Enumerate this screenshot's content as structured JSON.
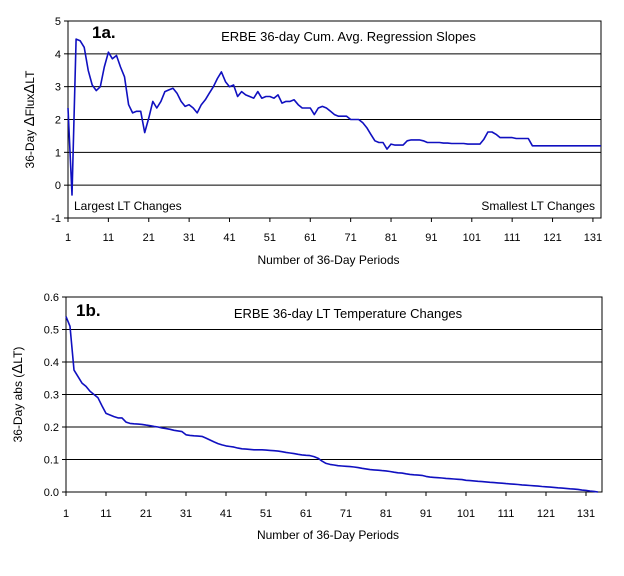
{
  "chart_data": [
    {
      "type": "line",
      "panel_label": "1a.",
      "title": "ERBE 36-day Cum. Avg. Regression Slopes",
      "xlabel": "Number of 36-Day Periods",
      "ylabel_parts": [
        "36-Day ",
        "Δ",
        "Flux",
        "Δ",
        "LT"
      ],
      "annotations": {
        "left": "Largest LT Changes",
        "right": "Smallest LT Changes"
      },
      "xlim": [
        1,
        133
      ],
      "ylim": [
        -1,
        5
      ],
      "x_ticks": [
        1,
        11,
        21,
        31,
        41,
        51,
        61,
        71,
        81,
        91,
        101,
        111,
        121,
        131
      ],
      "y_ticks": [
        -1,
        0,
        1,
        2,
        3,
        4,
        5
      ],
      "grid": true,
      "x": [
        1,
        2,
        3,
        4,
        5,
        6,
        7,
        8,
        9,
        10,
        11,
        12,
        13,
        14,
        15,
        16,
        17,
        18,
        19,
        20,
        21,
        22,
        23,
        24,
        25,
        26,
        27,
        28,
        29,
        30,
        31,
        32,
        33,
        34,
        35,
        36,
        37,
        38,
        39,
        40,
        41,
        42,
        43,
        44,
        45,
        46,
        47,
        48,
        49,
        50,
        51,
        52,
        53,
        54,
        55,
        56,
        57,
        58,
        59,
        60,
        61,
        62,
        63,
        64,
        65,
        66,
        67,
        68,
        69,
        70,
        71,
        72,
        73,
        74,
        75,
        76,
        77,
        78,
        79,
        80,
        81,
        82,
        83,
        84,
        85,
        86,
        87,
        88,
        89,
        90,
        91,
        92,
        93,
        94,
        95,
        96,
        97,
        98,
        99,
        100,
        101,
        102,
        103,
        104,
        105,
        106,
        107,
        108,
        109,
        110,
        111,
        112,
        113,
        114,
        115,
        116,
        117,
        118,
        119,
        120,
        121,
        122,
        123,
        124,
        125,
        126,
        127,
        128,
        129,
        130,
        131,
        132,
        133
      ],
      "values": [
        2.35,
        -0.3,
        4.45,
        4.4,
        4.2,
        3.5,
        3.05,
        2.88,
        3.0,
        3.6,
        4.05,
        3.85,
        3.95,
        3.6,
        3.3,
        2.45,
        2.2,
        2.25,
        2.25,
        1.6,
        2.05,
        2.55,
        2.35,
        2.55,
        2.85,
        2.9,
        2.95,
        2.8,
        2.55,
        2.4,
        2.45,
        2.35,
        2.2,
        2.45,
        2.6,
        2.8,
        3.0,
        3.25,
        3.45,
        3.15,
        3.0,
        3.05,
        2.7,
        2.85,
        2.75,
        2.7,
        2.65,
        2.85,
        2.65,
        2.7,
        2.7,
        2.65,
        2.75,
        2.5,
        2.55,
        2.55,
        2.6,
        2.45,
        2.35,
        2.35,
        2.35,
        2.15,
        2.35,
        2.4,
        2.35,
        2.25,
        2.15,
        2.1,
        2.1,
        2.1,
        2.0,
        2.0,
        2.0,
        1.9,
        1.75,
        1.55,
        1.35,
        1.3,
        1.3,
        1.1,
        1.25,
        1.22,
        1.22,
        1.22,
        1.35,
        1.38,
        1.38,
        1.38,
        1.35,
        1.3,
        1.3,
        1.3,
        1.3,
        1.28,
        1.28,
        1.27,
        1.27,
        1.27,
        1.27,
        1.25,
        1.25,
        1.25,
        1.25,
        1.4,
        1.62,
        1.62,
        1.55,
        1.45,
        1.45,
        1.45,
        1.45,
        1.42,
        1.42,
        1.42,
        1.42,
        1.2,
        1.2,
        1.2,
        1.2,
        1.2,
        1.2,
        1.2,
        1.2,
        1.2,
        1.2,
        1.2,
        1.2,
        1.2,
        1.2,
        1.2,
        1.2,
        1.2,
        1.2
      ]
    },
    {
      "type": "line",
      "panel_label": "1b.",
      "title": "ERBE 36-day LT Temperature Changes",
      "xlabel": "Number of 36-Day Periods",
      "ylabel_parts": [
        "36-Day abs (",
        "Δ",
        "LT)"
      ],
      "xlim": [
        1,
        135
      ],
      "ylim": [
        0,
        0.6
      ],
      "x_ticks": [
        1,
        11,
        21,
        31,
        41,
        51,
        61,
        71,
        81,
        91,
        101,
        111,
        121,
        131
      ],
      "y_ticks": [
        "0.0",
        "0.1",
        "0.2",
        "0.3",
        "0.4",
        "0.5",
        "0.6"
      ],
      "grid": true,
      "x": [
        1,
        2,
        3,
        4,
        5,
        6,
        7,
        8,
        9,
        10,
        11,
        12,
        13,
        14,
        15,
        16,
        17,
        18,
        19,
        20,
        21,
        22,
        23,
        24,
        25,
        26,
        27,
        28,
        29,
        30,
        31,
        32,
        33,
        34,
        35,
        36,
        37,
        38,
        39,
        40,
        41,
        42,
        43,
        44,
        45,
        46,
        47,
        48,
        49,
        50,
        51,
        52,
        53,
        54,
        55,
        56,
        57,
        58,
        59,
        60,
        61,
        62,
        63,
        64,
        65,
        66,
        67,
        68,
        69,
        70,
        71,
        72,
        73,
        74,
        75,
        76,
        77,
        78,
        79,
        80,
        81,
        82,
        83,
        84,
        85,
        86,
        87,
        88,
        89,
        90,
        91,
        92,
        93,
        94,
        95,
        96,
        97,
        98,
        99,
        100,
        101,
        102,
        103,
        104,
        105,
        106,
        107,
        108,
        109,
        110,
        111,
        112,
        113,
        114,
        115,
        116,
        117,
        118,
        119,
        120,
        121,
        122,
        123,
        124,
        125,
        126,
        127,
        128,
        129,
        130,
        131,
        132,
        133,
        134
      ],
      "values": [
        0.54,
        0.51,
        0.375,
        0.355,
        0.335,
        0.325,
        0.31,
        0.3,
        0.29,
        0.265,
        0.242,
        0.237,
        0.232,
        0.228,
        0.228,
        0.215,
        0.211,
        0.21,
        0.209,
        0.208,
        0.206,
        0.204,
        0.202,
        0.2,
        0.197,
        0.195,
        0.193,
        0.19,
        0.188,
        0.186,
        0.176,
        0.174,
        0.173,
        0.172,
        0.171,
        0.166,
        0.16,
        0.154,
        0.149,
        0.145,
        0.142,
        0.14,
        0.138,
        0.135,
        0.133,
        0.132,
        0.131,
        0.13,
        0.13,
        0.13,
        0.129,
        0.128,
        0.127,
        0.126,
        0.124,
        0.122,
        0.12,
        0.118,
        0.116,
        0.114,
        0.113,
        0.112,
        0.109,
        0.104,
        0.095,
        0.088,
        0.085,
        0.083,
        0.081,
        0.08,
        0.079,
        0.078,
        0.077,
        0.075,
        0.073,
        0.071,
        0.069,
        0.068,
        0.067,
        0.066,
        0.065,
        0.063,
        0.061,
        0.059,
        0.058,
        0.056,
        0.054,
        0.053,
        0.052,
        0.051,
        0.048,
        0.046,
        0.045,
        0.044,
        0.043,
        0.042,
        0.041,
        0.04,
        0.039,
        0.038,
        0.036,
        0.035,
        0.034,
        0.033,
        0.032,
        0.031,
        0.03,
        0.029,
        0.028,
        0.027,
        0.026,
        0.025,
        0.024,
        0.023,
        0.022,
        0.021,
        0.02,
        0.019,
        0.018,
        0.017,
        0.016,
        0.015,
        0.014,
        0.013,
        0.012,
        0.011,
        0.01,
        0.009,
        0.008,
        0.006,
        0.005,
        0.003,
        0.002,
        0.0
      ]
    }
  ],
  "colors": {
    "series": "#1010c0",
    "grid": "#000000",
    "background": "#ffffff"
  }
}
